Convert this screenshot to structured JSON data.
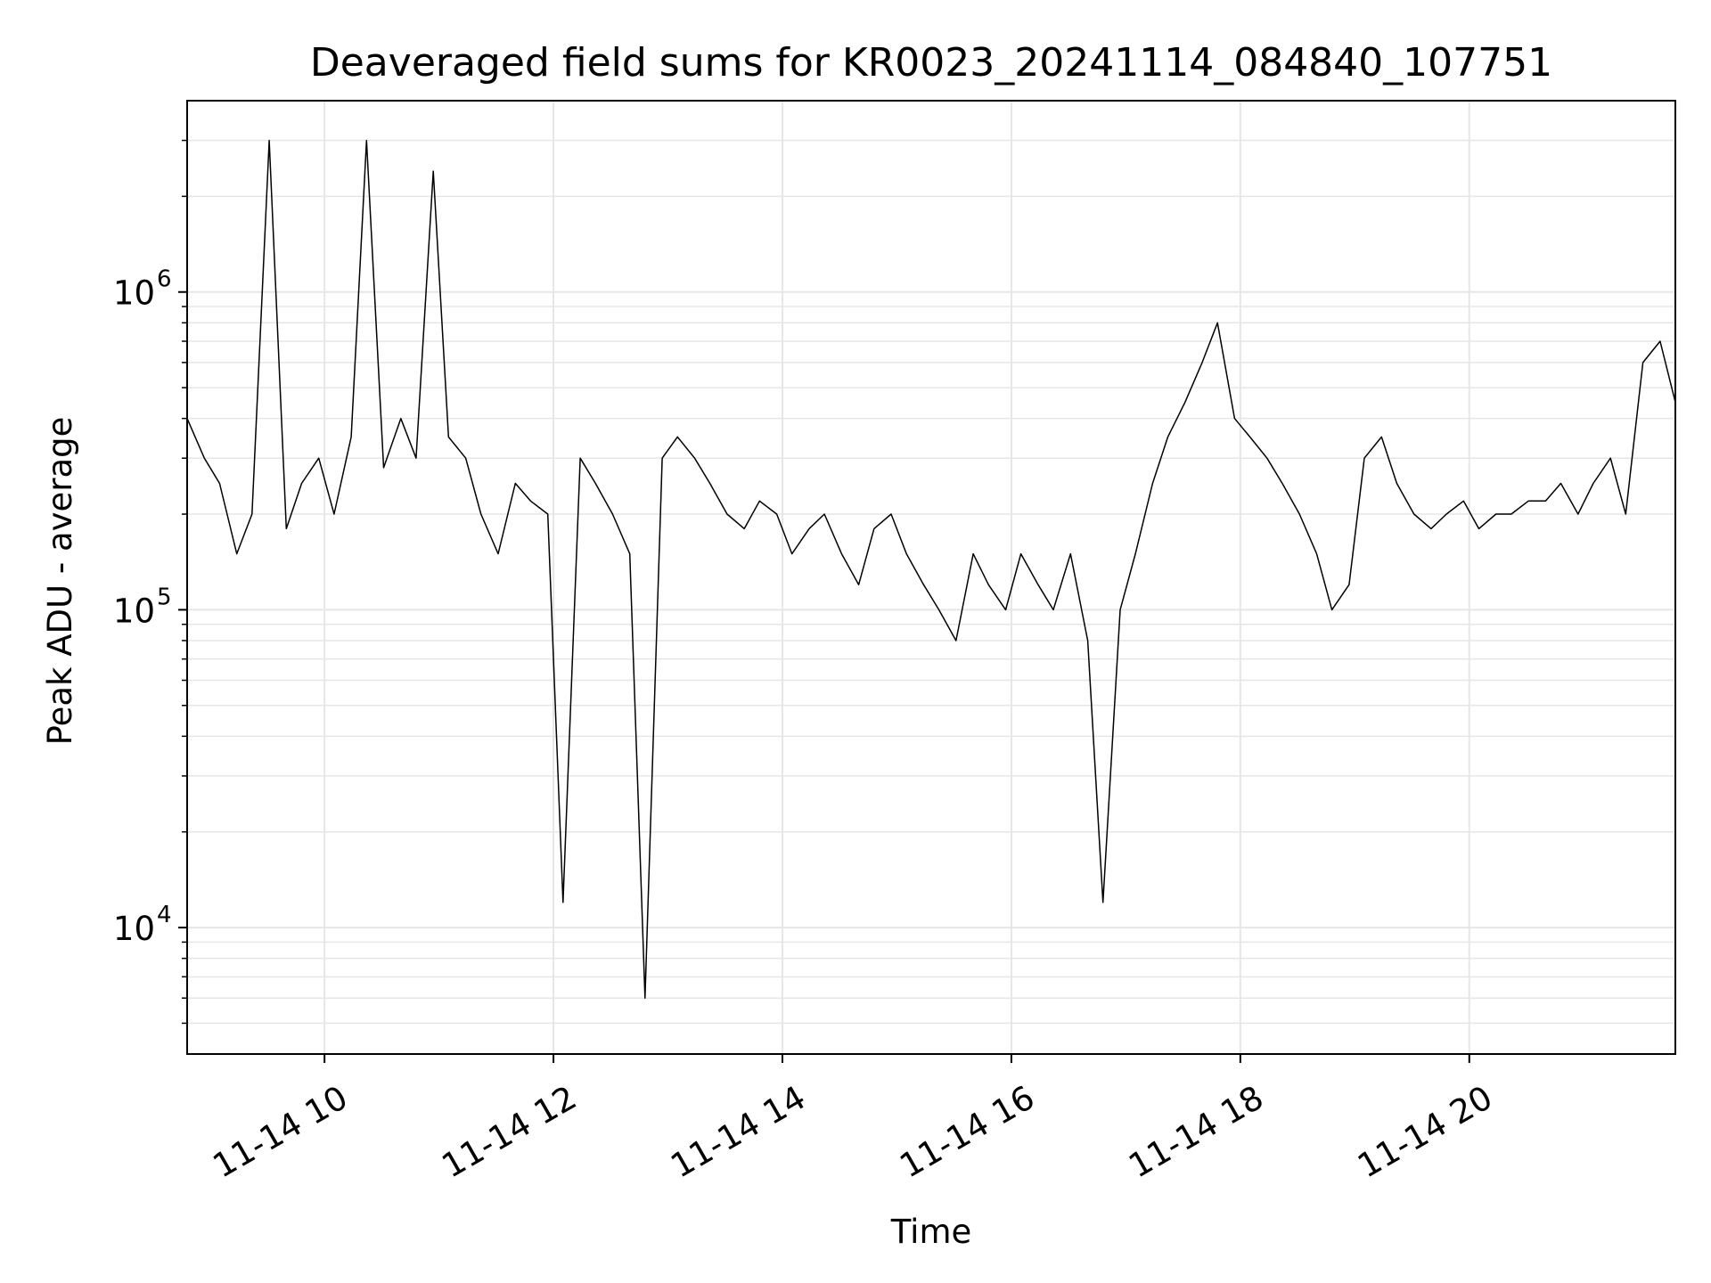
{
  "chart_data": {
    "type": "line",
    "title": "Deaveraged field sums for KR0023_20241114_084840_107751",
    "xlabel": "Time",
    "ylabel": "Peak ADU - average",
    "x_range": [
      "2024-11-14T08:48",
      "2024-11-14T21:48"
    ],
    "y_range": [
      4000,
      4000000
    ],
    "y_scale": "log",
    "grid": true,
    "line_color": "#000000",
    "grid_color": "#e6e6e6",
    "x_ticks": [
      {
        "value": "2024-11-14T10:00",
        "label": "11-14 10"
      },
      {
        "value": "2024-11-14T12:00",
        "label": "11-14 12"
      },
      {
        "value": "2024-11-14T14:00",
        "label": "11-14 14"
      },
      {
        "value": "2024-11-14T16:00",
        "label": "11-14 16"
      },
      {
        "value": "2024-11-14T18:00",
        "label": "11-14 18"
      },
      {
        "value": "2024-11-14T20:00",
        "label": "11-14 20"
      }
    ],
    "y_ticks": [
      {
        "value": 10000,
        "base": "10",
        "exp": "4"
      },
      {
        "value": 100000,
        "base": "10",
        "exp": "5"
      },
      {
        "value": 1000000,
        "base": "10",
        "exp": "6"
      }
    ],
    "series": [
      {
        "x": [
          "2024-11-14T08:48",
          "2024-11-14T08:57",
          "2024-11-14T09:05",
          "2024-11-14T09:14",
          "2024-11-14T09:22",
          "2024-11-14T09:31",
          "2024-11-14T09:40",
          "2024-11-14T09:48",
          "2024-11-14T09:57",
          "2024-11-14T10:05",
          "2024-11-14T10:14",
          "2024-11-14T10:22",
          "2024-11-14T10:31",
          "2024-11-14T10:40",
          "2024-11-14T10:48",
          "2024-11-14T10:57",
          "2024-11-14T11:05",
          "2024-11-14T11:14",
          "2024-11-14T11:22",
          "2024-11-14T11:31",
          "2024-11-14T11:40",
          "2024-11-14T11:48",
          "2024-11-14T11:57",
          "2024-11-14T12:05",
          "2024-11-14T12:14",
          "2024-11-14T12:22",
          "2024-11-14T12:31",
          "2024-11-14T12:40",
          "2024-11-14T12:48",
          "2024-11-14T12:57",
          "2024-11-14T13:05",
          "2024-11-14T13:14",
          "2024-11-14T13:22",
          "2024-11-14T13:31",
          "2024-11-14T13:40",
          "2024-11-14T13:48",
          "2024-11-14T13:57",
          "2024-11-14T14:05",
          "2024-11-14T14:14",
          "2024-11-14T14:22",
          "2024-11-14T14:31",
          "2024-11-14T14:40",
          "2024-11-14T14:48",
          "2024-11-14T14:57",
          "2024-11-14T15:05",
          "2024-11-14T15:14",
          "2024-11-14T15:22",
          "2024-11-14T15:31",
          "2024-11-14T15:40",
          "2024-11-14T15:48",
          "2024-11-14T15:57",
          "2024-11-14T16:05",
          "2024-11-14T16:14",
          "2024-11-14T16:22",
          "2024-11-14T16:31",
          "2024-11-14T16:40",
          "2024-11-14T16:48",
          "2024-11-14T16:57",
          "2024-11-14T17:05",
          "2024-11-14T17:14",
          "2024-11-14T17:22",
          "2024-11-14T17:31",
          "2024-11-14T17:40",
          "2024-11-14T17:48",
          "2024-11-14T17:57",
          "2024-11-14T18:05",
          "2024-11-14T18:14",
          "2024-11-14T18:22",
          "2024-11-14T18:31",
          "2024-11-14T18:40",
          "2024-11-14T18:48",
          "2024-11-14T18:57",
          "2024-11-14T19:05",
          "2024-11-14T19:14",
          "2024-11-14T19:22",
          "2024-11-14T19:31",
          "2024-11-14T19:40",
          "2024-11-14T19:48",
          "2024-11-14T19:57",
          "2024-11-14T20:05",
          "2024-11-14T20:14",
          "2024-11-14T20:22",
          "2024-11-14T20:31",
          "2024-11-14T20:40",
          "2024-11-14T20:48",
          "2024-11-14T20:57",
          "2024-11-14T21:05",
          "2024-11-14T21:14",
          "2024-11-14T21:22",
          "2024-11-14T21:31",
          "2024-11-14T21:40",
          "2024-11-14T21:48"
        ],
        "y": [
          400000,
          300000,
          250000,
          150000,
          200000,
          3000000,
          180000,
          250000,
          300000,
          200000,
          350000,
          3000000,
          280000,
          400000,
          300000,
          2400000,
          350000,
          300000,
          200000,
          150000,
          250000,
          220000,
          200000,
          12000,
          300000,
          250000,
          200000,
          150000,
          6000,
          300000,
          350000,
          300000,
          250000,
          200000,
          180000,
          220000,
          200000,
          150000,
          180000,
          200000,
          150000,
          120000,
          180000,
          200000,
          150000,
          120000,
          100000,
          80000,
          150000,
          120000,
          100000,
          150000,
          120000,
          100000,
          150000,
          80000,
          12000,
          100000,
          150000,
          250000,
          350000,
          450000,
          600000,
          800000,
          400000,
          350000,
          300000,
          250000,
          200000,
          150000,
          100000,
          120000,
          300000,
          350000,
          250000,
          200000,
          180000,
          200000,
          220000,
          180000,
          200000,
          200000,
          220000,
          220000,
          250000,
          200000,
          250000,
          300000,
          200000,
          600000,
          700000,
          450000
        ]
      }
    ]
  }
}
